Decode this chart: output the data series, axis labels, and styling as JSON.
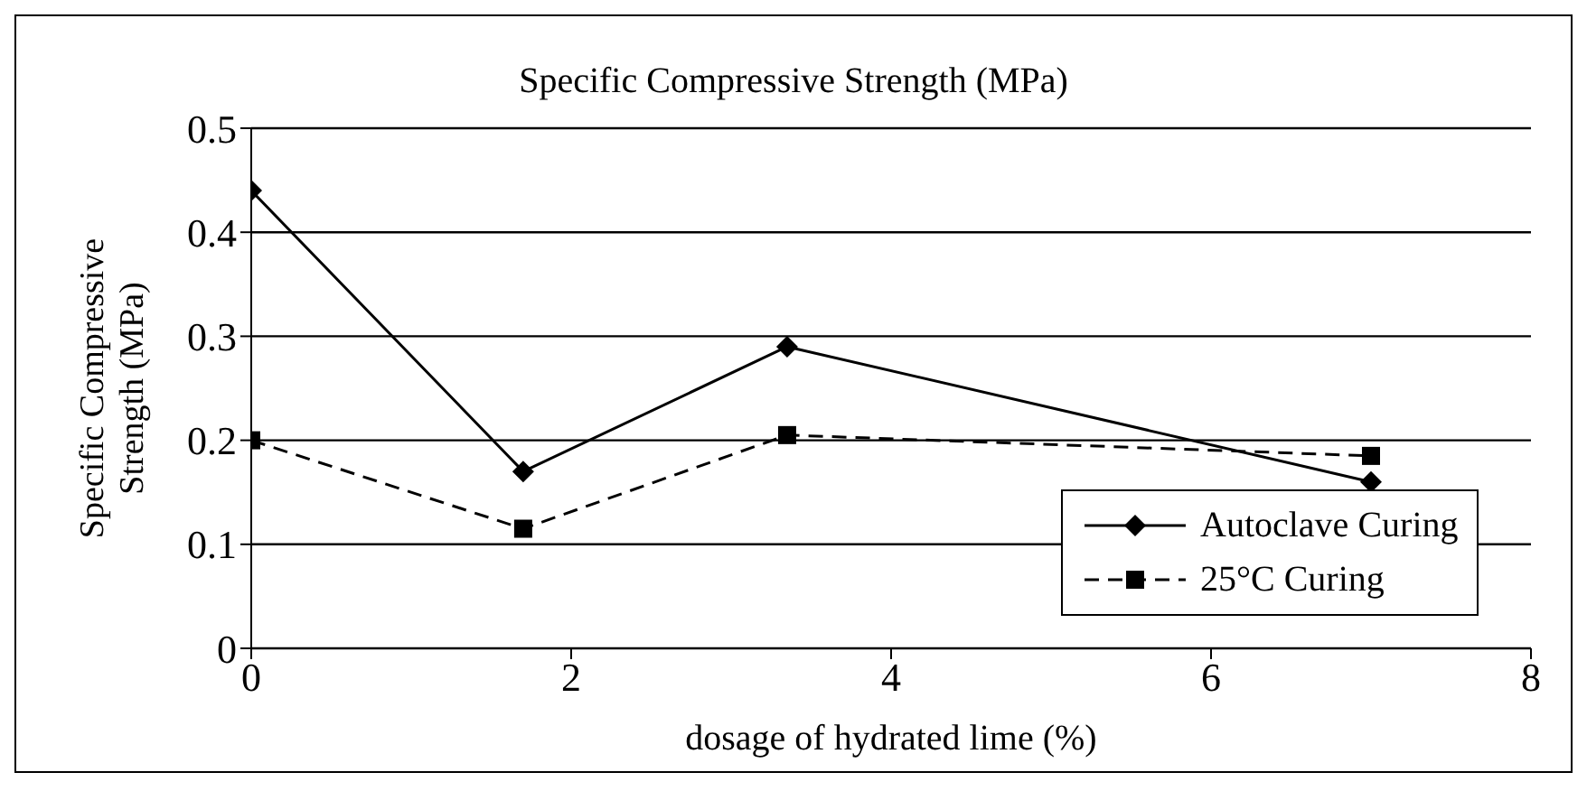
{
  "chart_data": {
    "type": "line",
    "title": "Specific Compressive Strength (MPa)",
    "xlabel": "dosage of hydrated lime (%)",
    "ylabel": "Specific Compressive Strength (MPa)",
    "x": [
      0,
      1.7,
      3.35,
      7
    ],
    "series": [
      {
        "name": "Autoclave Curing",
        "color": "#000000",
        "values": [
          0.44,
          0.17,
          0.29,
          0.16
        ],
        "marker": "diamond",
        "line_style": "solid"
      },
      {
        "name": "25°C Curing",
        "color": "#000000",
        "values": [
          0.2,
          0.115,
          0.205,
          0.185
        ],
        "marker": "square",
        "line_style": "dashed"
      }
    ],
    "xlim": [
      0,
      8
    ],
    "xticks": [
      0,
      2,
      4,
      6,
      8
    ],
    "ylim": [
      0,
      0.5
    ],
    "yticks": [
      0,
      0.1,
      0.2,
      0.3,
      0.4,
      0.5
    ],
    "grid": "y",
    "legend": "bottom right"
  }
}
